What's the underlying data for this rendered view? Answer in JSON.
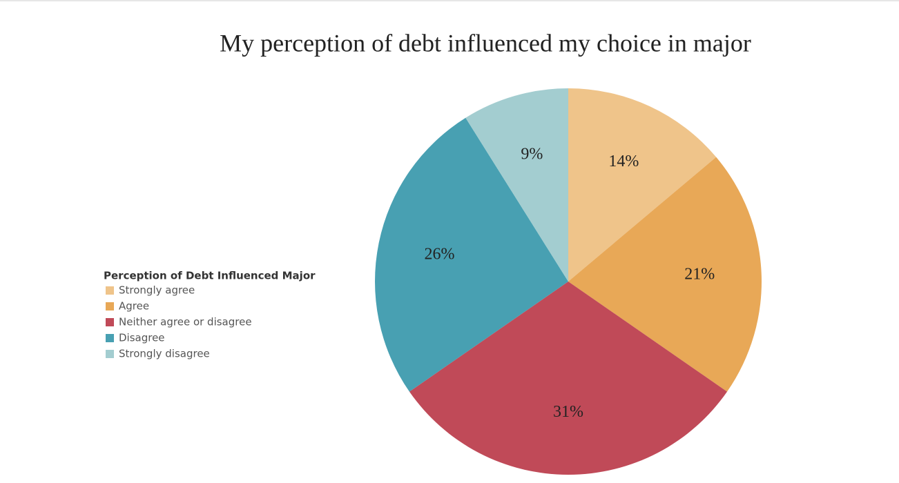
{
  "chart_data": {
    "type": "pie",
    "title": "My perception of debt influenced my choice in major",
    "legend_title": "Perception of Debt Influenced Major",
    "categories": [
      "Strongly agree",
      "Agree",
      "Neither agree or disagree",
      "Disagree",
      "Strongly disagree"
    ],
    "values": [
      14,
      21,
      31,
      26,
      9
    ],
    "value_labels": [
      "14%",
      "21%",
      "31%",
      "26%",
      "9%"
    ],
    "colors": [
      "#efc48a",
      "#e8a857",
      "#c04a58",
      "#48a0b2",
      "#a3cdd0"
    ],
    "legend": "left"
  }
}
